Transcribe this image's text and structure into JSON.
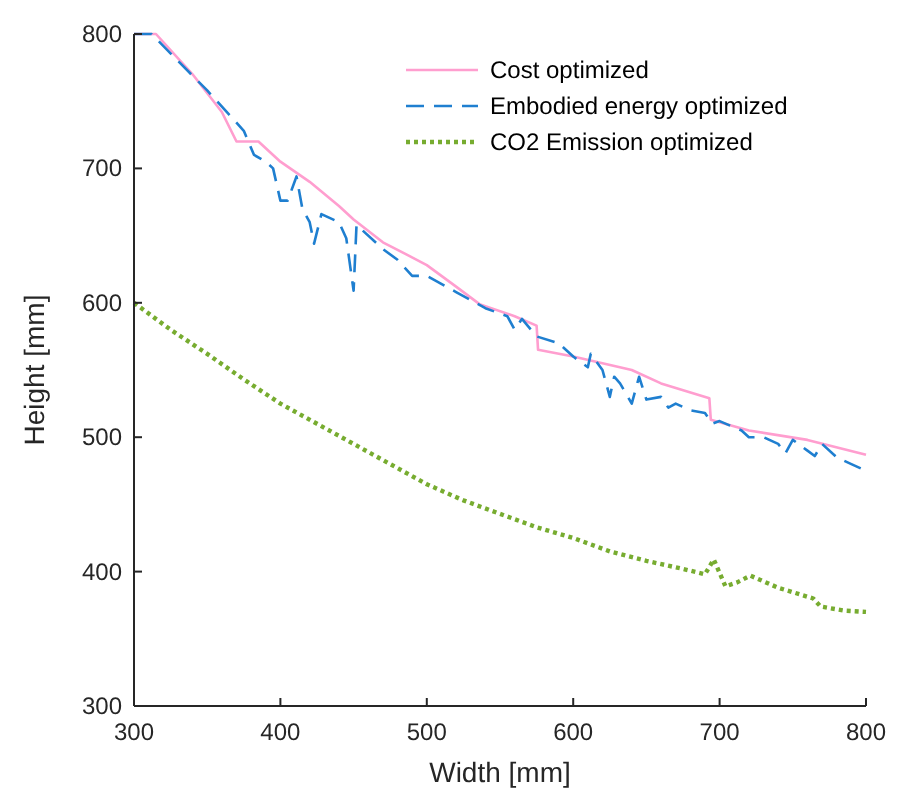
{
  "chart_data": {
    "type": "line",
    "xlabel": "Width [mm]",
    "ylabel": "Height [mm]",
    "xlim": [
      300,
      800
    ],
    "ylim": [
      300,
      800
    ],
    "xticks": [
      300,
      400,
      500,
      600,
      700,
      800
    ],
    "yticks": [
      300,
      400,
      500,
      600,
      700,
      800
    ],
    "grid": false,
    "legend": "top right",
    "series": [
      {
        "name": "Cost optimized",
        "color": "#ff9ecf",
        "line_style": "solid",
        "x": [
          300,
          315,
          340,
          360,
          370,
          385,
          400,
          420,
          440,
          450,
          470,
          486,
          500,
          520,
          536,
          560,
          575,
          576,
          600,
          640,
          660,
          693,
          694,
          720,
          760,
          800
        ],
        "values": [
          800,
          800,
          770,
          742,
          720,
          720,
          705,
          690,
          672,
          662,
          645,
          636,
          628,
          612,
          599,
          590,
          583,
          565,
          560,
          550,
          540,
          529,
          513,
          505,
          498,
          487
        ]
      },
      {
        "name": "Embodied energy optimized",
        "color": "#1f7fd0",
        "line_style": "dashed",
        "x": [
          300,
          312,
          330,
          350,
          365,
          375,
          382,
          390,
          395,
          400,
          405,
          411,
          415,
          420,
          423,
          428,
          440,
          445,
          450,
          452,
          470,
          480,
          490,
          500,
          520,
          540,
          555,
          560,
          565,
          575,
          590,
          600,
          610,
          612,
          620,
          625,
          628,
          632,
          640,
          645,
          650,
          660,
          665,
          670,
          680,
          690,
          695,
          700,
          715,
          720,
          730,
          740,
          745,
          750,
          760,
          765,
          770,
          780,
          790,
          800
        ],
        "values": [
          800,
          800,
          780,
          758,
          740,
          728,
          710,
          705,
          700,
          676,
          676,
          694,
          670,
          660,
          644,
          666,
          660,
          648,
          609,
          658,
          640,
          632,
          620,
          620,
          608,
          596,
          590,
          580,
          588,
          575,
          570,
          560,
          552,
          562,
          550,
          530,
          545,
          540,
          525,
          545,
          528,
          530,
          522,
          525,
          520,
          518,
          510,
          512,
          505,
          500,
          500,
          495,
          488,
          498,
          490,
          486,
          495,
          485,
          480,
          475
        ]
      },
      {
        "name": "CO2 Emission optimized",
        "color": "#77ac30",
        "line_style": "dotted",
        "x": [
          300,
          325,
          350,
          375,
          400,
          425,
          450,
          475,
          500,
          525,
          550,
          575,
          600,
          625,
          650,
          675,
          690,
          696,
          704,
          712,
          721,
          740,
          764,
          769,
          785,
          800
        ],
        "values": [
          600,
          580,
          562,
          543,
          525,
          510,
          495,
          480,
          465,
          453,
          443,
          433,
          425,
          415,
          408,
          402,
          398,
          409,
          389,
          392,
          397,
          388,
          380,
          374,
          371,
          370
        ]
      }
    ]
  }
}
